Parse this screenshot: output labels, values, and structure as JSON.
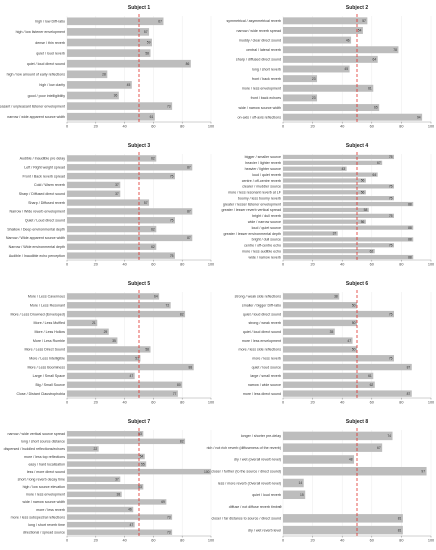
{
  "chart_data": [
    {
      "type": "bar",
      "orientation": "horizontal",
      "title": "Subject 1",
      "xlim": [
        0,
        100
      ],
      "xticks": [
        0,
        20,
        40,
        60,
        80,
        100
      ],
      "reference_line": {
        "value": 50,
        "style": "dashed",
        "color": "#e0302a"
      },
      "categories": [
        "high / low Diff-ratio",
        "high / low listener envelopment",
        "dense / thin reverb",
        "quiet / loud reverb",
        "quiet / loud direct sound",
        "high / low amount of early reflections",
        "high / low clarity",
        "good / poor intelligibility",
        "pleasant / unpleasant listener envelopment",
        "narrow / wide apparent source width"
      ],
      "values": [
        67,
        57,
        59,
        58,
        86,
        28,
        45,
        36,
        73,
        61
      ]
    },
    {
      "type": "bar",
      "orientation": "horizontal",
      "title": "Subject 2",
      "xlim": [
        0,
        100
      ],
      "xticks": [
        0,
        20,
        40,
        60,
        80,
        100
      ],
      "reference_line": {
        "value": 50,
        "style": "dashed",
        "color": "#e0302a"
      },
      "categories": [
        "symmetrical / asymmetrical reverb",
        "narrow / wide reverb spread",
        "muddy / clear direct sound",
        "central / lateral reverb",
        "sharp / diffused direct sound",
        "long / short reverb",
        "front / back reverb",
        "more / less envelopment",
        "front / back echoes",
        "wide / narrow source width",
        "on-axis / off-axis reflections"
      ],
      "values": [
        57,
        54,
        46,
        78,
        64,
        45,
        23,
        61,
        23,
        65,
        94
      ]
    },
    {
      "type": "bar",
      "orientation": "horizontal",
      "title": "Subject 3",
      "xlim": [
        0,
        100
      ],
      "xticks": [
        0,
        20,
        40,
        60,
        80,
        100
      ],
      "reference_line": {
        "value": 50,
        "style": "dashed",
        "color": "#e0302a"
      },
      "categories": [
        "Audible / Inaudible pre delay",
        "Left / Right weight spread",
        "Front / Back reverb spread",
        "Cold / Warm reverb",
        "Sharp / Diffused direct sound",
        "Sharp / Diffused reverb",
        "Narrow / Wide reverb envelopment",
        "Quiet / Loud direct sound",
        "Shallow / Deep environmental depth",
        "Narrow / Wide apparent source width",
        "Narrow / Wide environmental depth",
        "Audible / Inaudible echo perception"
      ],
      "values": [
        62,
        87,
        75,
        37,
        37,
        57,
        87,
        75,
        62,
        87,
        62,
        75
      ]
    },
    {
      "type": "bar",
      "orientation": "horizontal",
      "title": "Subject 4",
      "xlim": [
        0,
        100
      ],
      "xticks": [
        0,
        20,
        40,
        60,
        80,
        100
      ],
      "reference_line": {
        "value": 50,
        "style": "dashed",
        "color": "#e0302a"
      },
      "categories": [
        "bigger / smaller source",
        "heavier / lighter reverb",
        "heavier / lighter source",
        "loud / quiet reverb",
        "centre / off-centre reverb",
        "clearer / muddier source",
        "more / less resonant reverb at LF",
        "boomy / less boomy reverb",
        "greater / lesser listener envelopment",
        "greater / lesser reverb vertical spread",
        "bright / dull reverb",
        "wide / narrow source",
        "loud / quiet source",
        "greater / lesser environmental depth",
        "bright / dull source",
        "centre / off-centre echo",
        "more / less audible echo",
        "wide / narrow reverb"
      ],
      "values": [
        75,
        67,
        43,
        64,
        56,
        75,
        56,
        75,
        88,
        58,
        75,
        56,
        88,
        37,
        88,
        75,
        62,
        88
      ]
    },
    {
      "type": "bar",
      "orientation": "horizontal",
      "title": "Subject 5",
      "xlim": [
        0,
        100
      ],
      "xticks": [
        0,
        20,
        40,
        60,
        80,
        100
      ],
      "reference_line": {
        "value": 50,
        "style": "dashed",
        "color": "#e0302a"
      },
      "categories": [
        "More / Less Cavernous",
        "More / Less Resonant",
        "More / Less Drowned (Enveloped)",
        "More / Less Muffled",
        "More / Less Hollow",
        "More / Less Rumble",
        "More / Less Direct Sound",
        "More / Less Intelligible",
        "More / Less Boominess",
        "Large / Small Space",
        "Big / Small Source",
        "Close / Distant Claustrophobia"
      ],
      "values": [
        64,
        72,
        82,
        21,
        29,
        35,
        58,
        51,
        88,
        47,
        80,
        77
      ]
    },
    {
      "type": "bar",
      "orientation": "horizontal",
      "title": "Subject 6",
      "xlim": [
        0,
        100
      ],
      "xticks": [
        0,
        20,
        40,
        60,
        80,
        100
      ],
      "reference_line": {
        "value": 50,
        "style": "dashed",
        "color": "#e0302a"
      },
      "categories": [
        "strong / weak side reflections",
        "smaller / bigger Diff-ratio",
        "quiet / loud direct sound",
        "strong / weak reverb",
        "quiet / loud direct sound",
        "more / less envelopment",
        "more / less side reflections",
        "more / less reverb",
        "quiet / loud source",
        "large / small reverb",
        "narrow / wide source",
        "more / less direct sound"
      ],
      "values": [
        38,
        50,
        75,
        50,
        35,
        47,
        50,
        75,
        87,
        61,
        62,
        87
      ]
    },
    {
      "type": "bar",
      "orientation": "horizontal",
      "title": "Subject 7",
      "xlim": [
        0,
        100
      ],
      "xticks": [
        0,
        20,
        40,
        60,
        80,
        100
      ],
      "reference_line": {
        "value": 50,
        "style": "dashed",
        "color": "#e0302a"
      },
      "categories": [
        "narrow / wide vertical source spread",
        "long / short source distance",
        "dispersed / huddled reflections/echoes",
        "more / less top reflections",
        "easy / hard localisation",
        "less / more direct sound",
        "short / long reverb decay time",
        "high / low source elevation",
        "more / less envelopment",
        "wide / narrow source width",
        "more / less reverb",
        "more / less subspectral reflections",
        "long / short reverb time",
        "directional / spread source"
      ],
      "values": [
        53,
        82,
        22,
        54,
        55,
        100,
        37,
        53,
        38,
        69,
        46,
        73,
        47,
        73
      ]
    },
    {
      "type": "bar",
      "orientation": "horizontal",
      "title": "Subject 8",
      "xlim": [
        0,
        100
      ],
      "xticks": [
        0,
        20,
        40,
        60,
        80,
        100
      ],
      "reference_line": {
        "value": 50,
        "style": "dashed",
        "color": "#e0302a"
      },
      "categories": [
        "longer / shorter pre-delay",
        "rich / not rich reverb (diffuseness of the reverb)",
        "dry / wet (overall reverb level)",
        "closer / further (to the source / direct sound)",
        "less / more reverb (Overall reverb level)",
        "quiet / loud reverb",
        "diffuse / not diffuse reverb timbre",
        "closer / far distance to source / direct sound",
        "dry / wet reverb level"
      ],
      "values": [
        74,
        67,
        48,
        97,
        14,
        15,
        0,
        81,
        81
      ]
    }
  ]
}
